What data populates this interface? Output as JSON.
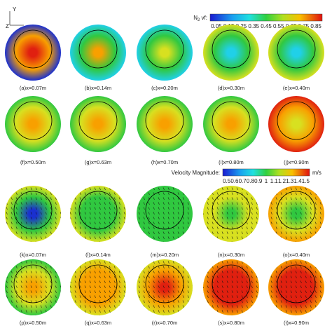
{
  "axes_indicator": {
    "vertical": "Y",
    "horizontal": "Z"
  },
  "colorbars": [
    {
      "label": "N",
      "subscript": "2",
      "suffix": " vf:",
      "unit": null,
      "ticks": [
        "0.05",
        "0.15",
        "0.25",
        "0.35",
        "0.45",
        "0.55",
        "0.65",
        "0.75",
        "0.85"
      ]
    },
    {
      "label": "Velocity Magnitude:",
      "subscript": null,
      "suffix": null,
      "unit": "m/s",
      "ticks": [
        "0.5",
        "0.6",
        "0.7",
        "0.8",
        "0.9",
        "1",
        "1.1",
        "1.2",
        "1.3",
        "1.4",
        "1.5"
      ]
    }
  ],
  "panels": [
    {
      "caption": "(a)x=0.07m"
    },
    {
      "caption": "(b)x=0.14m"
    },
    {
      "caption": "(c)x=0.20m"
    },
    {
      "caption": "(d)x=0.30m"
    },
    {
      "caption": "(e)x=0.40m"
    },
    {
      "caption": "(f)x=0.50m"
    },
    {
      "caption": "(g)x=0.63m"
    },
    {
      "caption": "(h)x=0.70m"
    },
    {
      "caption": "(i)x=0.80m"
    },
    {
      "caption": "(j)x=0.90m"
    },
    {
      "caption": "(k)x=0.07m"
    },
    {
      "caption": "(l)x=0.14m"
    },
    {
      "caption": "(m)x=0.20m"
    },
    {
      "caption": "(n)x=0.30m"
    },
    {
      "caption": "(o)x=0.40m"
    },
    {
      "caption": "(p)x=0.50m"
    },
    {
      "caption": "(q)x=0.63m"
    },
    {
      "caption": "(r)x=0.70m"
    },
    {
      "caption": "(s)x=0.80m"
    },
    {
      "caption": "(t)x=0.90m"
    }
  ]
}
